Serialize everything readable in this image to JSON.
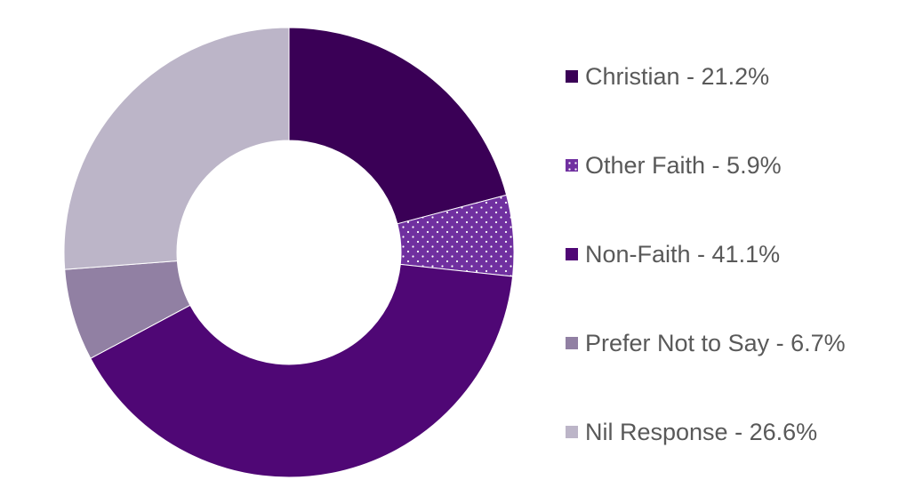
{
  "chart_data": {
    "type": "pie",
    "variant": "donut",
    "title": "",
    "categories": [
      "Christian",
      "Other Faith",
      "Non-Faith",
      "Prefer Not to Say",
      "Nil Response"
    ],
    "values": [
      21.2,
      5.9,
      41.1,
      6.7,
      26.6
    ],
    "unit": "%",
    "legend_labels": [
      "Christian - 21.2%",
      "Other Faith - 5.9%",
      "Non-Faith - 41.1%",
      "Prefer Not to Say - 6.7%",
      "Nil Response - 26.6%"
    ],
    "colors": [
      "#3a0056",
      "#7030a0",
      "#4f0775",
      "#9180a3",
      "#bcb5c8"
    ],
    "patterns": [
      "solid",
      "dotted",
      "solid",
      "solid",
      "solid"
    ],
    "legend_position": "right",
    "start_angle": "top, clockwise"
  }
}
